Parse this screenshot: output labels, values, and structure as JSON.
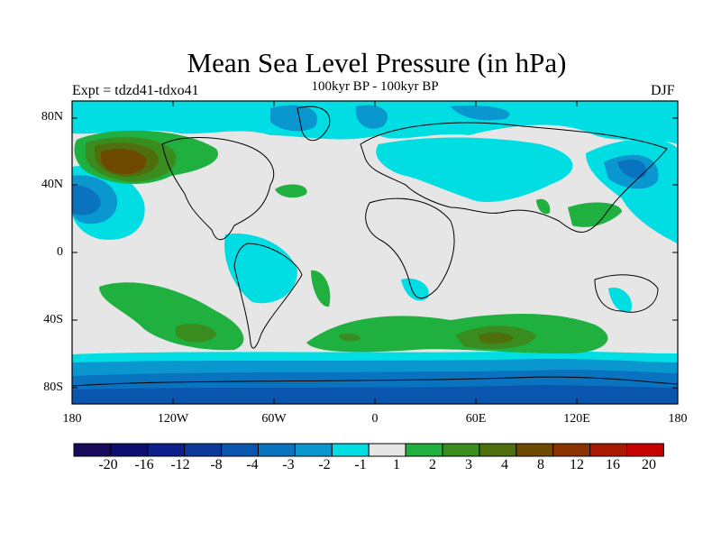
{
  "figure": {
    "title": "Mean Sea Level Pressure (in hPa)",
    "subtitle": "100kyr BP - 100kyr BP",
    "left_string": "Expt = tdzd41-tdxo41",
    "right_string": "DJF"
  },
  "axes": {
    "lat_labels": [
      "80N",
      "40N",
      "0",
      "40S",
      "80S"
    ],
    "lon_labels": [
      "180",
      "120W",
      "60W",
      "0",
      "60E",
      "120E",
      "180"
    ]
  },
  "colorbar": {
    "labels": [
      "-20",
      "-16",
      "-12",
      "-8",
      "-4",
      "-3",
      "-2",
      "-1",
      "1",
      "2",
      "3",
      "4",
      "8",
      "12",
      "16",
      "20"
    ],
    "colors": [
      "#1a0a5c",
      "#0d0d72",
      "#0c1f8a",
      "#0c3a9a",
      "#0a55ad",
      "#0a73c0",
      "#0a96cf",
      "#00dde3",
      "#e6e6e6",
      "#1fb040",
      "#3a8c1e",
      "#4e6f0c",
      "#6e4a00",
      "#8a3200",
      "#a81b00",
      "#c70000"
    ]
  },
  "field_colors": {
    "background": "#e6e6e6",
    "neg1": "#00dde3",
    "neg2": "#0a96cf",
    "neg3": "#0a73c0",
    "neg4": "#0a55ad",
    "pos1": "#1fb040",
    "pos2": "#3a8c1e",
    "pos3": "#4e6f0c",
    "pos4": "#6e4a00"
  }
}
